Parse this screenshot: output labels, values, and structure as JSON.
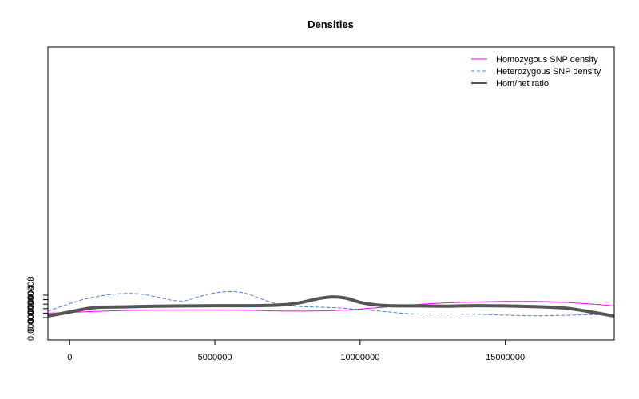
{
  "chart_data": {
    "type": "line",
    "title": "Densities",
    "xlabel": "",
    "ylabel": "",
    "xlim": [
      -750000,
      18750000
    ],
    "ylim": [
      -1e-07,
      1.21e-06
    ],
    "xticks": [
      0,
      5000000,
      10000000,
      15000000
    ],
    "xtick_labels": [
      "0",
      "5000000",
      "10000000",
      "15000000"
    ],
    "yticks": [
      0,
      2e-08,
      4e-08,
      6e-08,
      8e-08,
      1e-07
    ],
    "ytick_labels": [
      "0.00000000",
      "",
      "0.00000004",
      "",
      "0.00000008",
      ""
    ],
    "legend_position": "top-right",
    "series": [
      {
        "name": "Homozygous SNP density",
        "color": "#ff00ff",
        "line_style": "solid",
        "line_width": 1,
        "x": [
          -750000,
          0,
          1000000,
          2000000,
          3000000,
          4000000,
          5000000,
          6000000,
          7000000,
          8000000,
          9000000,
          10000000,
          11000000,
          12000000,
          13000000,
          14000000,
          15000000,
          16000000,
          17000000,
          18000000,
          18750000
        ],
        "y": [
          2e-08,
          2.3e-08,
          2.8e-08,
          3.2e-08,
          3.4e-08,
          3.45e-08,
          3.45e-08,
          3.3e-08,
          3e-08,
          2.9e-08,
          3.1e-08,
          3.8e-08,
          4.8e-08,
          5.9e-08,
          6.6e-08,
          7e-08,
          7.2e-08,
          7.2e-08,
          6.8e-08,
          6e-08,
          5.2e-08
        ]
      },
      {
        "name": "Heterozygous SNP density",
        "color": "#4f7fd9",
        "line_style": "dashed",
        "line_width": 1,
        "x": [
          -750000,
          0,
          500000,
          1000000,
          1500000,
          2000000,
          2500000,
          3000000,
          3500000,
          3800000,
          4000000,
          4500000,
          5000000,
          5500000,
          6000000,
          6500000,
          7000000,
          7500000,
          8000000,
          8500000,
          9000000,
          9500000,
          10000000,
          10500000,
          11000000,
          11500000,
          12000000,
          12500000,
          13000000,
          14000000,
          15000000,
          16000000,
          17000000,
          18000000,
          18750000
        ],
        "y": [
          2.9e-08,
          6.2e-08,
          8.2e-08,
          9.5e-08,
          1.04e-07,
          1.08e-07,
          1.04e-07,
          9.2e-08,
          7.8e-08,
          7.4e-08,
          7.6e-08,
          9.5e-08,
          1.1e-07,
          1.16e-07,
          1.1e-07,
          8.8e-08,
          6.6e-08,
          5.4e-08,
          4.9e-08,
          4.7e-08,
          4.5e-08,
          4.1e-08,
          3.6e-08,
          3.1e-08,
          2.5e-08,
          1.9e-08,
          1.6e-08,
          1.6e-08,
          1.6e-08,
          1.5e-08,
          1.1e-08,
          8e-09,
          1e-08,
          1.3e-08,
          1.1e-08
        ]
      },
      {
        "name": "Hom/het ratio",
        "color": "#555555",
        "line_style": "solid",
        "line_width": 4,
        "x": [
          -750000,
          0,
          500000,
          1000000,
          2000000,
          3000000,
          4000000,
          5000000,
          6000000,
          7000000,
          7500000,
          8000000,
          8500000,
          9000000,
          9500000,
          10000000,
          10500000,
          11000000,
          12000000,
          13000000,
          14000000,
          15000000,
          16000000,
          17000000,
          17500000,
          18000000,
          18750000
        ],
        "y": [
          7e-09,
          2.5e-08,
          3.8e-08,
          4.6e-08,
          4.8e-08,
          5.1e-08,
          5.2e-08,
          5.3e-08,
          5.3e-08,
          5.5e-08,
          5.9e-08,
          6.8e-08,
          8.3e-08,
          9.2e-08,
          8.7e-08,
          6.8e-08,
          5.7e-08,
          5.3e-08,
          5.2e-08,
          5.1e-08,
          5.3e-08,
          5.2e-08,
          4.9e-08,
          4.3e-08,
          3.5e-08,
          2.4e-08,
          7e-09
        ]
      }
    ]
  }
}
